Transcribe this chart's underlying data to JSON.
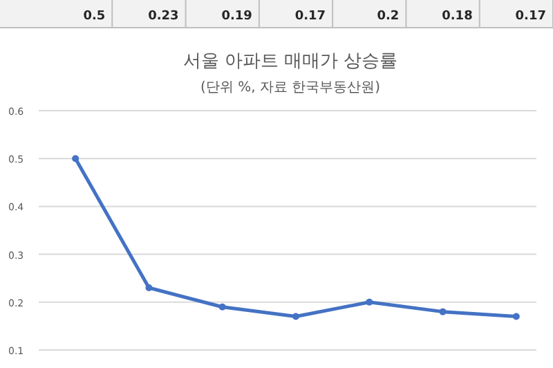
{
  "chart_data": {
    "type": "line",
    "title": "서울 아파트 매매가 상승률",
    "subtitle": "(단위 %, 자료 한국부동산원)",
    "categories": [
      null,
      null,
      null,
      null,
      null,
      null,
      null
    ],
    "series": [
      {
        "color": "#4472c4",
        "values": [
          0.5,
          0.23,
          0.19,
          0.17,
          0.2,
          0.18,
          0.17
        ]
      }
    ],
    "ylim": [
      0.1,
      0.6
    ],
    "yticks": [
      0.1,
      0.2,
      0.3,
      0.4,
      0.5,
      0.6
    ],
    "grid": "y",
    "marker": "circle",
    "line_style": "solid",
    "data_labels": true,
    "tick_labels": "y"
  }
}
